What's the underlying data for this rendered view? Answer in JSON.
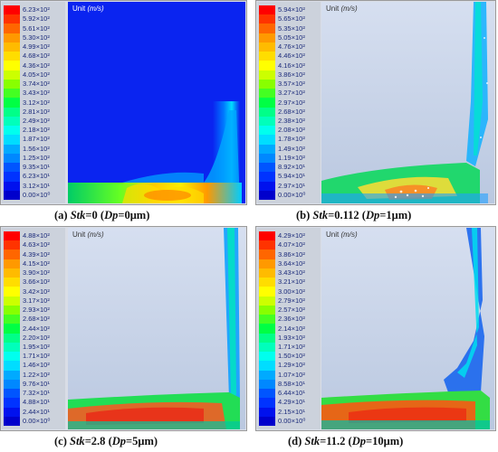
{
  "unit_label": "Unit",
  "unit_symbol": "(m/s)",
  "panels": [
    {
      "tag": "(a)",
      "stk_label": "Stk",
      "stk_value": "=0",
      "dp_label": "Dp",
      "dp_value": "=0μm)",
      "ticks": [
        "6.23×10²",
        "5.92×10²",
        "5.61×10²",
        "5.30×10²",
        "4.99×10²",
        "4.68×10²",
        "4.36×10²",
        "4.05×10²",
        "3.74×10²",
        "3.43×10²",
        "3.12×10²",
        "2.81×10²",
        "2.49×10²",
        "2.18×10²",
        "1.87×10²",
        "1.56×10²",
        "1.25×10²",
        "9.35×10¹",
        "6.23×10¹",
        "3.12×10¹",
        "0.00×10⁰"
      ]
    },
    {
      "tag": "(b)",
      "stk_label": "Stk",
      "stk_value": "=0.112",
      "dp_label": "Dp",
      "dp_value": "=1μm)",
      "ticks": [
        "5.94×10²",
        "5.65×10²",
        "5.35×10²",
        "5.05×10²",
        "4.76×10²",
        "4.46×10²",
        "4.16×10²",
        "3.86×10²",
        "3.57×10²",
        "3.27×10²",
        "2.97×10²",
        "2.68×10²",
        "2.38×10²",
        "2.08×10²",
        "1.78×10²",
        "1.49×10²",
        "1.19×10²",
        "8.92×10¹",
        "5.94×10¹",
        "2.97×10¹",
        "0.00×10⁰"
      ]
    },
    {
      "tag": "(c)",
      "stk_label": "Stk",
      "stk_value": "=2.8",
      "dp_label": "Dp",
      "dp_value": "=5μm)",
      "ticks": [
        "4.88×10²",
        "4.63×10²",
        "4.39×10²",
        "4.15×10²",
        "3.90×10²",
        "3.66×10²",
        "3.42×10²",
        "3.17×10²",
        "2.93×10²",
        "2.68×10²",
        "2.44×10²",
        "2.20×10²",
        "1.95×10²",
        "1.71×10²",
        "1.46×10²",
        "1.22×10²",
        "9.76×10¹",
        "7.32×10¹",
        "4.88×10¹",
        "2.44×10¹",
        "0.00×10⁰"
      ]
    },
    {
      "tag": "(d)",
      "stk_label": "Stk",
      "stk_value": "=11.2",
      "dp_label": "Dp",
      "dp_value": "=10μm)",
      "ticks": [
        "4.29×10²",
        "4.07×10²",
        "3.86×10²",
        "3.64×10²",
        "3.43×10²",
        "3.21×10²",
        "3.00×10²",
        "2.79×10²",
        "2.57×10²",
        "2.36×10²",
        "2.14×10²",
        "1.93×10²",
        "1.71×10²",
        "1.50×10²",
        "1.29×10²",
        "1.07×10²",
        "8.58×10¹",
        "6.44×10¹",
        "4.29×10¹",
        "2.15×10¹",
        "0.00×10⁰"
      ]
    }
  ],
  "colormap": [
    "#ff0000",
    "#ff3300",
    "#ff6600",
    "#ff9900",
    "#ffbb00",
    "#ffdd00",
    "#ffff00",
    "#ccff00",
    "#88ff00",
    "#44ff22",
    "#00ff44",
    "#00ff88",
    "#00ffbb",
    "#00ffee",
    "#00ddff",
    "#00aaff",
    "#0088ff",
    "#0055ff",
    "#0033ff",
    "#0011ee",
    "#0000cc"
  ]
}
